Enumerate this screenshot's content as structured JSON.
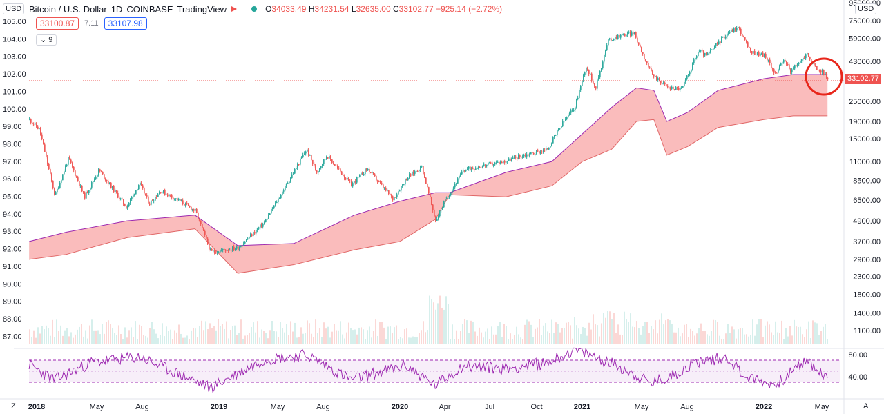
{
  "header": {
    "currency_left": "USD",
    "symbol": "Bitcoin / U.S. Dollar",
    "interval": "1D",
    "exchange": "COINBASE",
    "source": "TradingView",
    "ohlc": {
      "o_label": "O",
      "o": "34033.49",
      "h_label": "H",
      "h": "34231.54",
      "l_label": "L",
      "l": "32635.00",
      "c_label": "C",
      "c": "33102.77",
      "change": "−925.14 (−2.72%)"
    },
    "bid": "33100.87",
    "spread": "7.11",
    "ask": "33107.98",
    "indicator_toggle": "9",
    "currency_right": "USD"
  },
  "colors": {
    "up": "#26a69a",
    "down": "#ef5350",
    "cloud_bear": "#f8a5a5",
    "cloud_bull": "#2962ff",
    "span": "#9c27b0",
    "rsi": "#9c27b0",
    "annotation": "#e8261b"
  },
  "chart_data": {
    "type": "line",
    "title": "Bitcoin / U.S. Dollar · 1D · COINBASE",
    "xlabel": "",
    "ylabel": "",
    "y_scale": "log",
    "x_ticks": [
      "2018",
      "May",
      "Aug",
      "2019",
      "May",
      "Aug",
      "2020",
      "Apr",
      "Jul",
      "Oct",
      "2021",
      "May",
      "Aug",
      "2022",
      "May"
    ],
    "left_axis_ticks": [
      "105.00",
      "104.00",
      "103.00",
      "102.00",
      "101.00",
      "100.00",
      "99.00",
      "98.00",
      "97.00",
      "96.00",
      "95.00",
      "94.00",
      "93.00",
      "92.00",
      "91.00",
      "90.00",
      "89.00",
      "88.00",
      "87.00"
    ],
    "price_axis_ticks": [
      "95000.00",
      "75000.00",
      "59000.00",
      "43000.00",
      "33102.77",
      "25000.00",
      "19000.00",
      "15000.00",
      "11000.00",
      "8500.00",
      "6500.00",
      "4900.00",
      "3700.00",
      "2900.00",
      "2300.00",
      "1800.00",
      "1400.00",
      "1100.00"
    ],
    "last_price": 33102.77,
    "price_series": {
      "name": "BTCUSD close",
      "x": [
        "2017-12-17",
        "2018-01-06",
        "2018-02-06",
        "2018-03-05",
        "2018-04-06",
        "2018-05-05",
        "2018-06-29",
        "2018-07-25",
        "2018-08-14",
        "2018-09-05",
        "2018-10-15",
        "2018-11-14",
        "2018-12-15",
        "2019-02-08",
        "2019-04-02",
        "2019-05-15",
        "2019-06-26",
        "2019-07-16",
        "2019-08-06",
        "2019-09-24",
        "2019-10-26",
        "2019-12-17",
        "2020-01-14",
        "2020-02-13",
        "2020-03-12",
        "2020-03-30",
        "2020-05-07",
        "2020-06-01",
        "2020-07-27",
        "2020-09-01",
        "2020-10-21",
        "2020-11-24",
        "2020-12-16",
        "2021-01-08",
        "2021-01-27",
        "2021-02-21",
        "2021-03-13",
        "2021-04-14",
        "2021-05-19",
        "2021-06-22",
        "2021-07-20",
        "2021-08-22",
        "2021-09-07",
        "2021-10-20",
        "2021-11-10",
        "2021-12-04",
        "2022-01-01",
        "2022-01-24",
        "2022-02-10",
        "2022-02-24",
        "2022-03-28",
        "2022-04-11",
        "2022-05-05",
        "2022-05-09"
      ],
      "y": [
        19500,
        17000,
        6900,
        11500,
        6800,
        9800,
        5900,
        8200,
        6200,
        7400,
        6400,
        5600,
        3200,
        3400,
        4800,
        7900,
        13000,
        9500,
        12000,
        8000,
        10000,
        6600,
        8800,
        10300,
        4900,
        6400,
        9800,
        10200,
        11000,
        11900,
        12900,
        19000,
        23000,
        40500,
        30000,
        57000,
        61000,
        63500,
        36500,
        30000,
        29800,
        50000,
        46500,
        64000,
        68500,
        49000,
        47000,
        36500,
        44000,
        37800,
        47800,
        40000,
        36000,
        33102.77
      ]
    },
    "cloud": {
      "description_units": "price, USD",
      "x": [
        "2017-12-17",
        "2018-03-01",
        "2018-07-01",
        "2018-11-14",
        "2019-02-08",
        "2019-06-01",
        "2019-10-01",
        "2020-01-01",
        "2020-03-12",
        "2020-04-10",
        "2020-08-01",
        "2020-11-01",
        "2021-01-01",
        "2021-03-01",
        "2021-04-20",
        "2021-05-25",
        "2021-06-20",
        "2021-08-01",
        "2021-10-01",
        "2022-01-01",
        "2022-03-01",
        "2022-05-09"
      ],
      "span_a": [
        3700,
        4200,
        4900,
        5300,
        3500,
        3600,
        5300,
        6400,
        7200,
        7200,
        9500,
        11000,
        16000,
        23000,
        30000,
        29000,
        19000,
        21500,
        29000,
        34000,
        36000,
        36000
      ],
      "span_b": [
        2900,
        3100,
        3900,
        4400,
        2400,
        2700,
        3300,
        3700,
        5000,
        7000,
        6800,
        7900,
        11000,
        13000,
        19000,
        19500,
        12000,
        13500,
        17500,
        19500,
        20500,
        20500
      ]
    },
    "rsi": {
      "name": "RSI",
      "ticks": [
        "80.00",
        "40.00"
      ],
      "upper": 70,
      "lower": 30,
      "x": [
        "2017-12-17",
        "2018-02-06",
        "2018-04-20",
        "2018-07-25",
        "2018-11-20",
        "2018-12-15",
        "2019-04-02",
        "2019-06-26",
        "2019-09-24",
        "2020-01-14",
        "2020-03-12",
        "2020-05-07",
        "2020-08-01",
        "2020-10-21",
        "2020-12-16",
        "2021-01-08",
        "2021-03-13",
        "2021-05-19",
        "2021-06-22",
        "2021-08-22",
        "2021-10-20",
        "2021-11-25",
        "2022-01-24",
        "2022-03-28",
        "2022-05-09"
      ],
      "y": [
        62,
        34,
        66,
        76,
        30,
        20,
        71,
        80,
        35,
        60,
        24,
        60,
        55,
        65,
        88,
        82,
        60,
        28,
        38,
        68,
        75,
        40,
        25,
        70,
        35
      ]
    }
  }
}
